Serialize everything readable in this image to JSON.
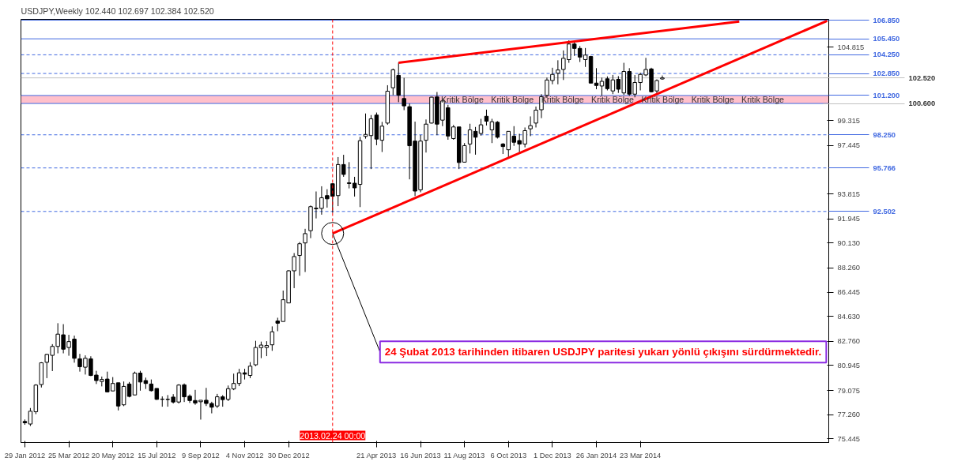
{
  "chart_data": {
    "type": "candlestick",
    "title": "USDJPY,Weekly  102.440 102.697 102.384 102.520",
    "x": [
      "2012-01-29",
      "2012-02-05",
      "2012-02-12",
      "2012-02-19",
      "2012-02-26",
      "2012-03-04",
      "2012-03-11",
      "2012-03-18",
      "2012-03-25",
      "2012-04-01",
      "2012-04-08",
      "2012-04-15",
      "2012-04-22",
      "2012-04-29",
      "2012-05-06",
      "2012-05-13",
      "2012-05-20",
      "2012-05-27",
      "2012-06-03",
      "2012-06-10",
      "2012-06-17",
      "2012-06-24",
      "2012-07-01",
      "2012-07-08",
      "2012-07-15",
      "2012-07-22",
      "2012-07-29",
      "2012-08-05",
      "2012-08-12",
      "2012-08-19",
      "2012-08-26",
      "2012-09-02",
      "2012-09-09",
      "2012-09-16",
      "2012-09-23",
      "2012-09-30",
      "2012-10-07",
      "2012-10-14",
      "2012-10-21",
      "2012-10-28",
      "2012-11-04",
      "2012-11-11",
      "2012-11-18",
      "2012-11-25",
      "2012-12-02",
      "2012-12-09",
      "2012-12-16",
      "2012-12-23",
      "2012-12-30",
      "2013-01-06",
      "2013-01-13",
      "2013-01-20",
      "2013-01-27",
      "2013-02-03",
      "2013-02-10",
      "2013-02-17",
      "2013-02-24",
      "2013-03-03",
      "2013-03-10",
      "2013-03-17",
      "2013-03-24",
      "2013-03-31",
      "2013-04-07",
      "2013-04-14",
      "2013-04-21",
      "2013-04-28",
      "2013-05-05",
      "2013-05-12",
      "2013-05-19",
      "2013-05-26",
      "2013-06-02",
      "2013-06-09",
      "2013-06-16",
      "2013-06-23",
      "2013-06-30",
      "2013-07-07",
      "2013-07-14",
      "2013-07-21",
      "2013-07-28",
      "2013-08-04",
      "2013-08-11",
      "2013-08-18",
      "2013-08-25",
      "2013-09-01",
      "2013-09-08",
      "2013-09-15",
      "2013-09-22",
      "2013-09-29",
      "2013-10-06",
      "2013-10-13",
      "2013-10-20",
      "2013-10-27",
      "2013-11-03",
      "2013-11-10",
      "2013-11-17",
      "2013-11-24",
      "2013-12-01",
      "2013-12-08",
      "2013-12-15",
      "2013-12-22",
      "2013-12-29",
      "2014-01-05",
      "2014-01-12",
      "2014-01-19",
      "2014-01-26",
      "2014-02-02",
      "2014-02-09",
      "2014-02-16",
      "2014-02-23",
      "2014-03-02",
      "2014-03-09",
      "2014-03-16",
      "2014-03-23",
      "2014-03-30",
      "2014-04-06",
      "2014-04-13",
      "2014-04-20"
    ],
    "ohlc": [
      [
        76.75,
        76.9,
        76.5,
        76.65
      ],
      [
        76.56,
        77.76,
        76.41,
        77.52
      ],
      [
        77.48,
        79.55,
        77.3,
        79.48
      ],
      [
        79.52,
        81.2,
        79.3,
        81.15
      ],
      [
        81.19,
        81.83,
        80.0,
        81.78
      ],
      [
        81.71,
        82.55,
        80.53,
        82.38
      ],
      [
        82.38,
        84.12,
        81.86,
        83.3
      ],
      [
        83.25,
        84.05,
        81.86,
        82.17
      ],
      [
        82.3,
        83.25,
        81.68,
        82.74
      ],
      [
        82.93,
        83.19,
        81.16,
        81.49
      ],
      [
        81.45,
        81.82,
        80.49,
        80.86
      ],
      [
        80.82,
        81.71,
        80.27,
        81.49
      ],
      [
        81.45,
        81.64,
        80.15,
        80.2
      ],
      [
        80.23,
        80.55,
        79.56,
        79.82
      ],
      [
        79.75,
        80.12,
        79.38,
        79.9
      ],
      [
        79.93,
        80.49,
        78.93,
        78.97
      ],
      [
        79.04,
        80.08,
        79.04,
        79.6
      ],
      [
        79.65,
        79.65,
        77.58,
        77.91
      ],
      [
        78.0,
        79.75,
        77.9,
        79.38
      ],
      [
        79.56,
        79.71,
        78.56,
        78.63
      ],
      [
        78.74,
        80.49,
        78.74,
        80.38
      ],
      [
        80.38,
        80.55,
        79.06,
        79.71
      ],
      [
        79.82,
        80.04,
        79.19,
        79.6
      ],
      [
        79.56,
        79.9,
        79.0,
        79.06
      ],
      [
        79.23,
        79.23,
        78.37,
        78.41
      ],
      [
        78.43,
        78.63,
        77.86,
        78.41
      ],
      [
        78.4,
        78.73,
        77.86,
        78.42
      ],
      [
        78.58,
        78.8,
        78.1,
        78.21
      ],
      [
        78.21,
        79.55,
        78.1,
        79.48
      ],
      [
        79.5,
        79.6,
        78.21,
        78.6
      ],
      [
        78.65,
        78.78,
        78.14,
        78.32
      ],
      [
        78.32,
        79.12,
        78.0,
        78.14
      ],
      [
        78.23,
        78.34,
        76.89,
        78.34
      ],
      [
        78.34,
        79.27,
        77.91,
        78.1
      ],
      [
        78.1,
        78.23,
        77.36,
        77.82
      ],
      [
        77.91,
        78.82,
        77.76,
        78.6
      ],
      [
        78.6,
        78.73,
        77.86,
        78.39
      ],
      [
        78.41,
        79.45,
        78.28,
        79.21
      ],
      [
        79.19,
        80.34,
        79.1,
        79.6
      ],
      [
        79.6,
        80.7,
        79.4,
        80.4
      ],
      [
        80.4,
        80.7,
        79.9,
        80.3
      ],
      [
        80.2,
        81.2,
        80.0,
        80.9
      ],
      [
        81.0,
        82.8,
        80.9,
        82.3
      ],
      [
        82.29,
        82.74,
        81.5,
        82.48
      ],
      [
        82.3,
        82.77,
        81.65,
        82.45
      ],
      [
        82.5,
        83.88,
        82.05,
        83.48
      ],
      [
        84.29,
        84.53,
        83.52,
        84.12
      ],
      [
        84.25,
        86.57,
        84.25,
        85.88
      ],
      [
        85.64,
        88.09,
        85.64,
        88.05
      ],
      [
        88.05,
        89.38,
        86.75,
        89.12
      ],
      [
        89.2,
        90.21,
        87.68,
        90.08
      ],
      [
        90.14,
        91.2,
        87.96,
        90.84
      ],
      [
        91.06,
        92.95,
        90.5,
        92.86
      ],
      [
        92.7,
        94.0,
        91.98,
        92.75
      ],
      [
        92.73,
        94.39,
        92.26,
        93.53
      ],
      [
        93.69,
        94.17,
        92.79,
        93.45
      ],
      [
        94.58,
        94.62,
        92.4,
        93.64
      ],
      [
        93.69,
        96.58,
        92.9,
        96.02
      ],
      [
        96.02,
        96.75,
        95.1,
        95.28
      ],
      [
        94.65,
        96.2,
        94.23,
        94.6
      ],
      [
        94.62,
        95.1,
        93.62,
        94.27
      ],
      [
        94.53,
        98.1,
        92.83,
        97.81
      ],
      [
        98.13,
        99.85,
        97.96,
        98.28
      ],
      [
        98.19,
        99.73,
        95.68,
        99.45
      ],
      [
        99.73,
        99.92,
        97.47,
        97.93
      ],
      [
        97.84,
        99.22,
        96.96,
        98.9
      ],
      [
        99.13,
        101.97,
        99.0,
        101.52
      ],
      [
        101.78,
        103.22,
        101.22,
        103.13
      ],
      [
        102.71,
        103.67,
        100.7,
        101.22
      ],
      [
        100.97,
        102.52,
        100.1,
        100.42
      ],
      [
        100.36,
        100.6,
        94.91,
        97.43
      ],
      [
        97.78,
        99.24,
        93.66,
        94.03
      ],
      [
        94.12,
        98.24,
        93.94,
        97.78
      ],
      [
        97.84,
        99.4,
        96.92,
        99.05
      ],
      [
        99.13,
        101.1,
        99.1,
        101.07
      ],
      [
        101.09,
        101.46,
        98.22,
        99.05
      ],
      [
        99.35,
        100.98,
        98.9,
        100.79
      ],
      [
        100.28,
        100.5,
        97.88,
        98.16
      ],
      [
        97.97,
        98.99,
        97.88,
        98.84
      ],
      [
        98.84,
        98.84,
        95.68,
        96.17
      ],
      [
        96.2,
        97.63,
        96.2,
        97.44
      ],
      [
        97.56,
        99.08,
        96.85,
        98.62
      ],
      [
        98.51,
        98.84,
        96.76,
        98.07
      ],
      [
        98.35,
        99.45,
        98.19,
        99.0
      ],
      [
        99.64,
        100.14,
        98.95,
        99.27
      ],
      [
        98.62,
        99.45,
        97.63,
        99.23
      ],
      [
        99.19,
        99.28,
        97.97,
        98.07
      ],
      [
        97.56,
        97.63,
        96.81,
        97.37
      ],
      [
        97.13,
        98.51,
        96.57,
        98.51
      ],
      [
        98.15,
        98.9,
        97.42,
        97.69
      ],
      [
        97.82,
        98.33,
        96.85,
        97.56
      ],
      [
        97.56,
        98.8,
        97.31,
        98.56
      ],
      [
        98.7,
        99.63,
        98.15,
        98.94
      ],
      [
        99.13,
        100.37,
        98.8,
        100.1
      ],
      [
        100.13,
        101.3,
        99.5,
        101.11
      ],
      [
        101.21,
        102.54,
        101.02,
        102.36
      ],
      [
        102.32,
        103.28,
        102.04,
        102.78
      ],
      [
        102.87,
        103.84,
        102.04,
        103.11
      ],
      [
        103.15,
        104.58,
        102.36,
        103.99
      ],
      [
        103.89,
        105.34,
        103.65,
        105.06
      ],
      [
        105.06,
        105.28,
        104.17,
        104.73
      ],
      [
        104.73,
        104.91,
        103.71,
        104.08
      ],
      [
        103.89,
        104.76,
        103.34,
        104.23
      ],
      [
        104.12,
        104.17,
        102.13,
        102.13
      ],
      [
        102.13,
        103.25,
        101.67,
        101.95
      ],
      [
        101.91,
        102.54,
        101.17,
        102.26
      ],
      [
        102.45,
        102.63,
        101.58,
        101.71
      ],
      [
        101.54,
        102.74,
        101.3,
        102.37
      ],
      [
        102.41,
        102.65,
        101.39,
        101.67
      ],
      [
        101.39,
        103.65,
        101.24,
        103.0
      ],
      [
        103.0,
        103.25,
        101.17,
        101.3
      ],
      [
        101.3,
        102.73,
        101.06,
        102.17
      ],
      [
        102.17,
        102.91,
        101.58,
        102.78
      ],
      [
        102.74,
        104.02,
        102.65,
        103.15
      ],
      [
        103.19,
        103.28,
        101.43,
        101.48
      ],
      [
        101.54,
        102.41,
        101.24,
        102.32
      ],
      [
        102.44,
        102.697,
        102.384,
        102.52
      ]
    ],
    "series": [
      {
        "type": "line",
        "color": "#ff0000",
        "x": [
          "2013-02-24",
          "2014-11-16"
        ],
        "values": [
          90.85,
          106.8
        ]
      },
      {
        "type": "line",
        "color": "#ff0000",
        "x": [
          "2013-05-19",
          "2014-07-27"
        ],
        "values": [
          103.65,
          106.75
        ]
      }
    ],
    "xlim": [
      "2012-01-24",
      "2014-11-18"
    ],
    "xticks": [
      {
        "value": "2012-01-29",
        "label": "29 Jan 2012"
      },
      {
        "value": "2012-03-25",
        "label": "25 Mar 2012"
      },
      {
        "value": "2012-05-20",
        "label": "20 May 2012"
      },
      {
        "value": "2012-07-15",
        "label": "15 Jul 2012"
      },
      {
        "value": "2012-09-09",
        "label": "9 Sep 2012"
      },
      {
        "value": "2012-11-04",
        "label": "4 Nov 2012"
      },
      {
        "value": "2012-12-30",
        "label": "30 Dec 2012"
      },
      {
        "value": "2013-04-21",
        "label": "21 Apr 2013"
      },
      {
        "value": "2013-06-16",
        "label": "16 Jun 2013"
      },
      {
        "value": "2013-08-11",
        "label": "11 Aug 2013"
      },
      {
        "value": "2013-10-06",
        "label": "6 Oct 2013"
      },
      {
        "value": "2013-12-01",
        "label": "1 Dec 2013"
      },
      {
        "value": "2014-01-26",
        "label": "26 Jan 2014"
      },
      {
        "value": "2014-03-23",
        "label": "23 Mar 2014"
      }
    ],
    "ylim": [
      75.17,
      106.91
    ],
    "yticks": [
      {
        "value": 75.445,
        "label": "75.445"
      },
      {
        "value": 77.26,
        "label": "77.260"
      },
      {
        "value": 79.075,
        "label": "79.075"
      },
      {
        "value": 80.945,
        "label": "80.945"
      },
      {
        "value": 82.76,
        "label": "82.760"
      },
      {
        "value": 84.63,
        "label": "84.630"
      },
      {
        "value": 86.445,
        "label": "86.445"
      },
      {
        "value": 88.26,
        "label": "88.260"
      },
      {
        "value": 90.13,
        "label": "90.130"
      },
      {
        "value": 91.945,
        "label": "91.945"
      },
      {
        "value": 93.815,
        "label": "93.815"
      },
      {
        "value": 97.445,
        "label": "97.445"
      },
      {
        "value": 99.315,
        "label": "99.315"
      },
      {
        "value": 104.815,
        "label": "104.815"
      }
    ],
    "ref_lines": [
      {
        "axis": "y",
        "value": 106.85,
        "label": "106.850",
        "color": "#4169e1",
        "line_style": "solid"
      },
      {
        "axis": "y",
        "value": 105.45,
        "label": "105.450",
        "color": "#4169e1",
        "line_style": "solid"
      },
      {
        "axis": "y",
        "value": 104.25,
        "label": "104.250",
        "color": "#4169e1",
        "line_style": "dashed"
      },
      {
        "axis": "y",
        "value": 102.85,
        "label": "102.850",
        "color": "#4169e1",
        "line_style": "dashed"
      },
      {
        "axis": "y",
        "value": 102.52,
        "label": "102.520",
        "color": "#c0c0c0",
        "line_style": "solid"
      },
      {
        "axis": "y",
        "value": 101.2,
        "label": "101.200",
        "color": "#4169e1",
        "line_style": "solid"
      },
      {
        "axis": "y",
        "value": 100.6,
        "label": "100.600",
        "color": "#4169e1",
        "line_style": "solid"
      },
      {
        "axis": "y",
        "value": 98.25,
        "label": "98.250",
        "color": "#4169e1",
        "line_style": "dashed"
      },
      {
        "axis": "y",
        "value": 95.766,
        "label": "95.766",
        "color": "#4169e1",
        "line_style": "dashed"
      },
      {
        "axis": "y",
        "value": 92.502,
        "label": "92.502",
        "color": "#4169e1",
        "line_style": "dashed"
      },
      {
        "axis": "x",
        "value": "2013-02-24",
        "label": "2013.02.24 00:00",
        "color": "#ff0000",
        "line_style": "dashed"
      }
    ],
    "bands": [
      {
        "axis": "y",
        "from": 100.6,
        "to": 101.2,
        "color": "#ffc0cb"
      }
    ],
    "annotations": [
      "Kritik Bölge",
      "Kritik Bölge",
      "Kritik Bölge",
      "Kritik Bölge",
      "Kritik Bölge",
      "Kritik Bölge",
      "Kritik Bölge",
      {
        "text": "24 Şubat 2013 tarihinden itibaren USDJPY paritesi yukarı yönlü çıkışını sürdürmektedir.",
        "x": "2013-02-24",
        "y": 90.85
      }
    ]
  }
}
